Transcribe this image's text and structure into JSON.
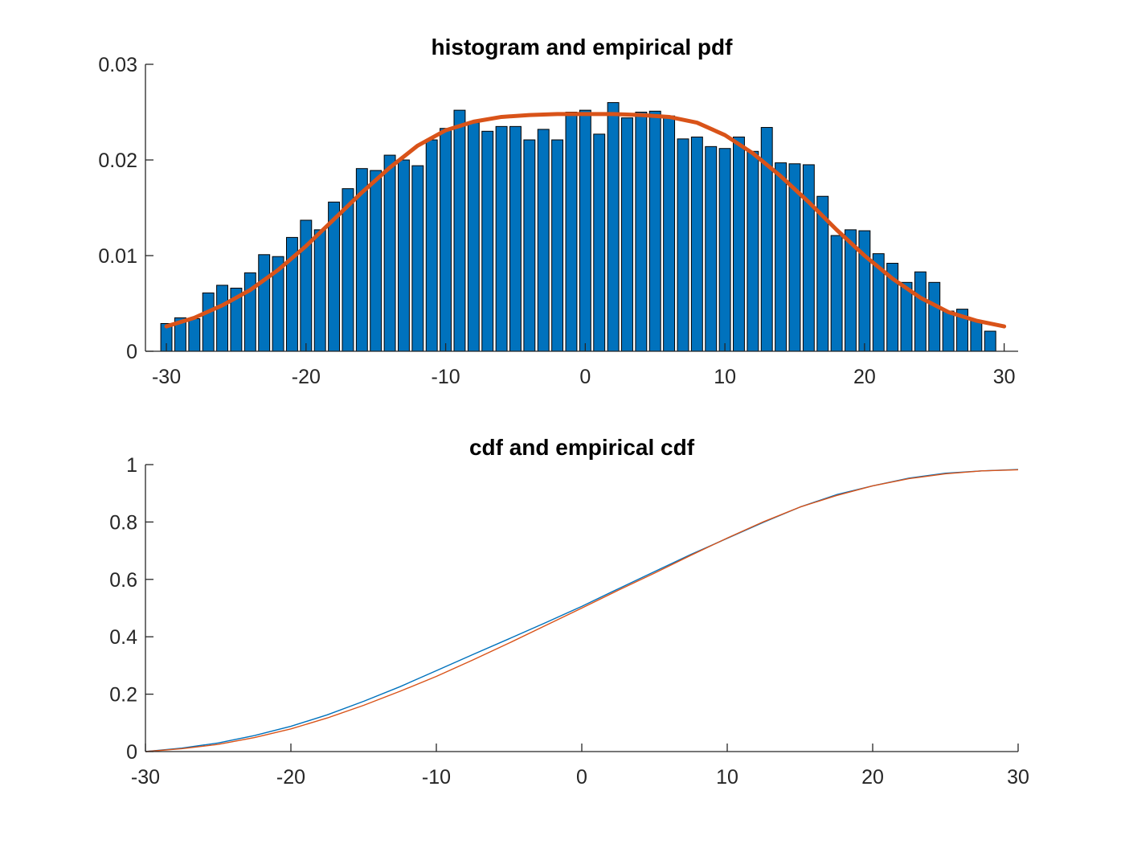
{
  "chart_data": [
    {
      "type": "bar",
      "title": "histogram and empirical pdf",
      "xlabel": "",
      "ylabel": "",
      "xlim": [
        -31.5,
        31
      ],
      "ylim": [
        0,
        0.03
      ],
      "grid": false,
      "legend": "none",
      "xticks": [
        -30,
        -20,
        -10,
        0,
        10,
        20,
        30
      ],
      "xtick_labels": [
        "-30",
        "-20",
        "-10",
        "0",
        "10",
        "20",
        "30"
      ],
      "yticks": [
        0,
        0.01,
        0.02,
        0.03
      ],
      "ytick_labels": [
        "0",
        "0.01",
        "0.02",
        "0.03"
      ],
      "bar_color": "#0072BD",
      "bins": {
        "x": [
          -30,
          -29,
          -28,
          -27,
          -26,
          -25,
          -24,
          -23,
          -22,
          -21,
          -20,
          -19,
          -18,
          -17,
          -16,
          -15,
          -14,
          -13,
          -12,
          -11,
          -10,
          -9,
          -8,
          -7,
          -6,
          -5,
          -4,
          -3,
          -2,
          -1,
          0,
          1,
          2,
          3,
          4,
          5,
          6,
          7,
          8,
          9,
          10,
          11,
          12,
          13,
          14,
          15,
          16,
          17,
          18,
          19,
          20,
          21,
          22,
          23,
          24,
          25,
          26,
          27,
          28,
          29
        ],
        "values": [
          0.0029,
          0.0035,
          0.0034,
          0.0061,
          0.0069,
          0.0066,
          0.0082,
          0.0101,
          0.0099,
          0.0119,
          0.0137,
          0.0127,
          0.0156,
          0.017,
          0.0191,
          0.0189,
          0.0205,
          0.02,
          0.0194,
          0.0221,
          0.0233,
          0.0252,
          0.0239,
          0.023,
          0.0235,
          0.0235,
          0.0221,
          0.0232,
          0.0221,
          0.025,
          0.0252,
          0.0227,
          0.026,
          0.0244,
          0.025,
          0.0251,
          0.0246,
          0.0222,
          0.0224,
          0.0214,
          0.0212,
          0.0224,
          0.0209,
          0.0234,
          0.0197,
          0.0196,
          0.0195,
          0.0162,
          0.0121,
          0.0127,
          0.0126,
          0.0102,
          0.0092,
          0.0072,
          0.0083,
          0.0072,
          0.0042,
          0.0044,
          0.0032,
          0.0021
        ]
      },
      "series": [
        {
          "type": "line",
          "color": "#D95319",
          "x": [
            -30,
            -28,
            -26,
            -24,
            -22,
            -20,
            -18,
            -16,
            -14,
            -12,
            -10,
            -8,
            -6,
            -4,
            -2,
            0,
            2,
            4,
            6,
            8,
            10,
            12,
            14,
            16,
            18,
            20,
            22,
            24,
            26,
            28,
            30
          ],
          "y": [
            0.0026,
            0.0035,
            0.0048,
            0.0064,
            0.0085,
            0.011,
            0.0138,
            0.0166,
            0.0192,
            0.0215,
            0.0231,
            0.024,
            0.0245,
            0.0247,
            0.0248,
            0.0248,
            0.0248,
            0.0247,
            0.0245,
            0.0239,
            0.0226,
            0.0207,
            0.0183,
            0.0156,
            0.0127,
            0.01,
            0.0076,
            0.0056,
            0.0041,
            0.0032,
            0.0026
          ]
        }
      ]
    },
    {
      "type": "line",
      "title": "cdf and empirical cdf",
      "xlabel": "",
      "ylabel": "",
      "xlim": [
        -30,
        30
      ],
      "ylim": [
        0,
        1
      ],
      "grid": false,
      "legend": "none",
      "xticks": [
        -30,
        -20,
        -10,
        0,
        10,
        20,
        30
      ],
      "xtick_labels": [
        "-30",
        "-20",
        "-10",
        "0",
        "10",
        "20",
        "30"
      ],
      "yticks": [
        0,
        0.2,
        0.4,
        0.6,
        0.8,
        1
      ],
      "ytick_labels": [
        "0",
        "0.2",
        "0.4",
        "0.6",
        "0.8",
        "1"
      ],
      "series": [
        {
          "color": "#0072BD",
          "x": [
            -30,
            -27.5,
            -25,
            -22.5,
            -20,
            -17.5,
            -15,
            -12.5,
            -10,
            -7.5,
            -5,
            -2.5,
            0,
            2.5,
            5,
            7.5,
            10,
            12.5,
            15,
            17.5,
            20,
            22.5,
            25,
            27.5,
            30
          ],
          "y": [
            0.0,
            0.012,
            0.03,
            0.056,
            0.088,
            0.128,
            0.175,
            0.226,
            0.282,
            0.338,
            0.393,
            0.449,
            0.506,
            0.567,
            0.627,
            0.687,
            0.743,
            0.799,
            0.852,
            0.895,
            0.926,
            0.953,
            0.97,
            0.978,
            0.983
          ]
        },
        {
          "color": "#D95319",
          "x": [
            -30,
            -27.5,
            -25,
            -22.5,
            -20,
            -17.5,
            -15,
            -12.5,
            -10,
            -7.5,
            -5,
            -2.5,
            0,
            2.5,
            5,
            7.5,
            10,
            12.5,
            15,
            17.5,
            20,
            22.5,
            25,
            27.5,
            30
          ],
          "y": [
            0.0,
            0.01,
            0.025,
            0.049,
            0.079,
            0.117,
            0.161,
            0.21,
            0.262,
            0.319,
            0.378,
            0.439,
            0.5,
            0.562,
            0.622,
            0.684,
            0.744,
            0.801,
            0.852,
            0.892,
            0.926,
            0.951,
            0.968,
            0.978,
            0.982
          ]
        }
      ]
    }
  ]
}
